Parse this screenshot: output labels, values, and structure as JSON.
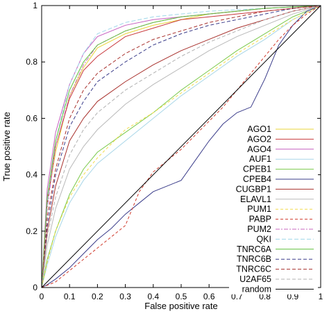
{
  "chart_data": {
    "type": "line",
    "title": "",
    "xlabel": "False positive rate",
    "ylabel": "True positive rate",
    "xlim": [
      0,
      1
    ],
    "ylim": [
      0,
      1
    ],
    "x_ticks": [
      "0",
      "0.1",
      "0.2",
      "0.3",
      "0.4",
      "0.5",
      "0.6",
      "0.7",
      "0.8",
      "0.9",
      "1"
    ],
    "y_ticks": [
      "0",
      "0.2",
      "0.4",
      "0.6",
      "0.8",
      "1"
    ],
    "legend_position": "right",
    "grid": false,
    "series": [
      {
        "name": "AGO1",
        "color": "#e8d43a",
        "dash": "solid",
        "x": [
          0,
          0.02,
          0.05,
          0.1,
          0.15,
          0.2,
          0.3,
          0.4,
          0.5,
          0.6,
          0.7,
          0.8,
          0.9,
          1
        ],
        "y": [
          0,
          0.3,
          0.48,
          0.68,
          0.78,
          0.85,
          0.9,
          0.93,
          0.95,
          0.97,
          0.98,
          0.99,
          0.995,
          1
        ]
      },
      {
        "name": "AGO2",
        "color": "#c8383c",
        "dash": "solid",
        "x": [
          0,
          0.02,
          0.05,
          0.1,
          0.15,
          0.2,
          0.3,
          0.4,
          0.5,
          0.6,
          0.7,
          0.8,
          0.9,
          1
        ],
        "y": [
          0,
          0.3,
          0.5,
          0.67,
          0.77,
          0.82,
          0.89,
          0.92,
          0.95,
          0.96,
          0.97,
          0.98,
          0.99,
          1
        ]
      },
      {
        "name": "AGO4",
        "color": "#c65fbf",
        "dash": "solid",
        "x": [
          0,
          0.02,
          0.05,
          0.1,
          0.15,
          0.2,
          0.3,
          0.4,
          0.5,
          0.6,
          0.7,
          0.8,
          0.9,
          1
        ],
        "y": [
          0,
          0.35,
          0.55,
          0.72,
          0.83,
          0.89,
          0.93,
          0.95,
          0.96,
          0.97,
          0.98,
          0.99,
          0.995,
          1
        ]
      },
      {
        "name": "AUF1",
        "color": "#a8d6e8",
        "dash": "solid",
        "x": [
          0,
          0.02,
          0.05,
          0.1,
          0.15,
          0.2,
          0.3,
          0.4,
          0.5,
          0.6,
          0.7,
          0.8,
          0.9,
          1
        ],
        "y": [
          0,
          0.08,
          0.18,
          0.3,
          0.38,
          0.44,
          0.52,
          0.6,
          0.68,
          0.75,
          0.82,
          0.88,
          0.95,
          1
        ]
      },
      {
        "name": "CPEB1",
        "color": "#7ac94a",
        "dash": "solid",
        "x": [
          0,
          0.02,
          0.05,
          0.1,
          0.15,
          0.2,
          0.3,
          0.4,
          0.5,
          0.6,
          0.7,
          0.8,
          0.9,
          1
        ],
        "y": [
          0,
          0.1,
          0.2,
          0.33,
          0.42,
          0.48,
          0.55,
          0.62,
          0.7,
          0.77,
          0.84,
          0.9,
          0.96,
          1
        ]
      },
      {
        "name": "CPEB4",
        "color": "#3a3c8a",
        "dash": "solid",
        "x": [
          0,
          0.02,
          0.05,
          0.1,
          0.15,
          0.2,
          0.25,
          0.3,
          0.35,
          0.4,
          0.5,
          0.55,
          0.6,
          0.65,
          0.7,
          0.75,
          0.8,
          0.85,
          0.9,
          0.95,
          1
        ],
        "y": [
          0,
          0.01,
          0.03,
          0.07,
          0.12,
          0.17,
          0.21,
          0.26,
          0.3,
          0.34,
          0.38,
          0.45,
          0.52,
          0.58,
          0.62,
          0.64,
          0.74,
          0.86,
          0.93,
          0.98,
          1
        ]
      },
      {
        "name": "CUGBP1",
        "color": "#a8302c",
        "dash": "solid",
        "x": [
          0,
          0.02,
          0.05,
          0.1,
          0.15,
          0.2,
          0.3,
          0.4,
          0.5,
          0.6,
          0.7,
          0.8,
          0.9,
          1
        ],
        "y": [
          0,
          0.2,
          0.36,
          0.52,
          0.6,
          0.66,
          0.73,
          0.79,
          0.84,
          0.88,
          0.92,
          0.95,
          0.98,
          1
        ]
      },
      {
        "name": "ELAVL1",
        "color": "#b9b9b9",
        "dash": "solid",
        "x": [
          0,
          0.02,
          0.05,
          0.1,
          0.15,
          0.2,
          0.3,
          0.4,
          0.5,
          0.6,
          0.7,
          0.8,
          0.9,
          1
        ],
        "y": [
          0,
          0.15,
          0.28,
          0.42,
          0.5,
          0.56,
          0.65,
          0.72,
          0.78,
          0.84,
          0.89,
          0.93,
          0.97,
          1
        ]
      },
      {
        "name": "PUM1",
        "color": "#f2dc4a",
        "dash": "4,3",
        "x": [
          0,
          0.02,
          0.05,
          0.1,
          0.15,
          0.2,
          0.3,
          0.4,
          0.5,
          0.6,
          0.7,
          0.8,
          0.9,
          1
        ],
        "y": [
          0,
          0.09,
          0.2,
          0.32,
          0.4,
          0.46,
          0.56,
          0.62,
          0.69,
          0.76,
          0.83,
          0.89,
          0.95,
          1
        ]
      },
      {
        "name": "PABP",
        "color": "#d03a2c",
        "dash": "4,3",
        "x": [
          0,
          0.05,
          0.1,
          0.15,
          0.2,
          0.25,
          0.3,
          0.35,
          0.4,
          0.45,
          0.5,
          0.55,
          0.6,
          0.65,
          0.7,
          0.75,
          0.8,
          0.85,
          0.9,
          0.95,
          1
        ],
        "y": [
          0,
          0.02,
          0.06,
          0.1,
          0.14,
          0.18,
          0.22,
          0.34,
          0.41,
          0.45,
          0.49,
          0.54,
          0.59,
          0.64,
          0.7,
          0.76,
          0.82,
          0.88,
          0.93,
          0.97,
          1
        ]
      },
      {
        "name": "PUM2",
        "color": "#c86abf",
        "dash": "6,2,2,2",
        "x": [
          0,
          0.02,
          0.05,
          0.1,
          0.15,
          0.2,
          0.3,
          0.4,
          0.5,
          0.6,
          0.7,
          0.8,
          0.9,
          1
        ],
        "y": [
          0,
          0.28,
          0.5,
          0.68,
          0.79,
          0.86,
          0.91,
          0.94,
          0.96,
          0.97,
          0.98,
          0.99,
          0.995,
          1
        ]
      },
      {
        "name": "QKI",
        "color": "#9fd8ea",
        "dash": "6,3",
        "x": [
          0,
          0.02,
          0.05,
          0.1,
          0.15,
          0.2,
          0.3,
          0.4,
          0.5,
          0.6,
          0.7,
          0.8,
          0.9,
          1
        ],
        "y": [
          0,
          0.3,
          0.52,
          0.72,
          0.83,
          0.9,
          0.94,
          0.96,
          0.97,
          0.98,
          0.985,
          0.99,
          0.995,
          1
        ]
      },
      {
        "name": "TNRC6A",
        "color": "#5fbf3a",
        "dash": "solid",
        "x": [
          0,
          0.02,
          0.05,
          0.1,
          0.15,
          0.2,
          0.3,
          0.4,
          0.5,
          0.6,
          0.7,
          0.8,
          0.9,
          1
        ],
        "y": [
          0,
          0.32,
          0.52,
          0.7,
          0.8,
          0.86,
          0.91,
          0.94,
          0.96,
          0.97,
          0.98,
          0.99,
          0.995,
          1
        ]
      },
      {
        "name": "TNRC6B",
        "color": "#3a3c8a",
        "dash": "5,3",
        "x": [
          0,
          0.02,
          0.05,
          0.1,
          0.15,
          0.2,
          0.3,
          0.4,
          0.5,
          0.6,
          0.7,
          0.8,
          0.9,
          1
        ],
        "y": [
          0,
          0.22,
          0.4,
          0.57,
          0.66,
          0.73,
          0.8,
          0.86,
          0.9,
          0.93,
          0.95,
          0.97,
          0.99,
          1
        ]
      },
      {
        "name": "TNRC6C",
        "color": "#a8302c",
        "dash": "5,3",
        "x": [
          0,
          0.02,
          0.05,
          0.1,
          0.15,
          0.2,
          0.3,
          0.4,
          0.5,
          0.6,
          0.7,
          0.8,
          0.9,
          1
        ],
        "y": [
          0,
          0.25,
          0.42,
          0.6,
          0.7,
          0.76,
          0.83,
          0.88,
          0.91,
          0.94,
          0.96,
          0.98,
          0.99,
          1
        ]
      },
      {
        "name": "U2AF65",
        "color": "#b0b0b0",
        "dash": "5,3",
        "x": [
          0,
          0.02,
          0.05,
          0.1,
          0.15,
          0.2,
          0.3,
          0.4,
          0.5,
          0.6,
          0.7,
          0.8,
          0.9,
          1
        ],
        "y": [
          0,
          0.18,
          0.32,
          0.47,
          0.56,
          0.62,
          0.7,
          0.76,
          0.82,
          0.87,
          0.91,
          0.95,
          0.98,
          1
        ]
      },
      {
        "name": "random",
        "color": "#000000",
        "dash": "solid",
        "x": [
          0,
          1
        ],
        "y": [
          0,
          1
        ]
      }
    ]
  }
}
